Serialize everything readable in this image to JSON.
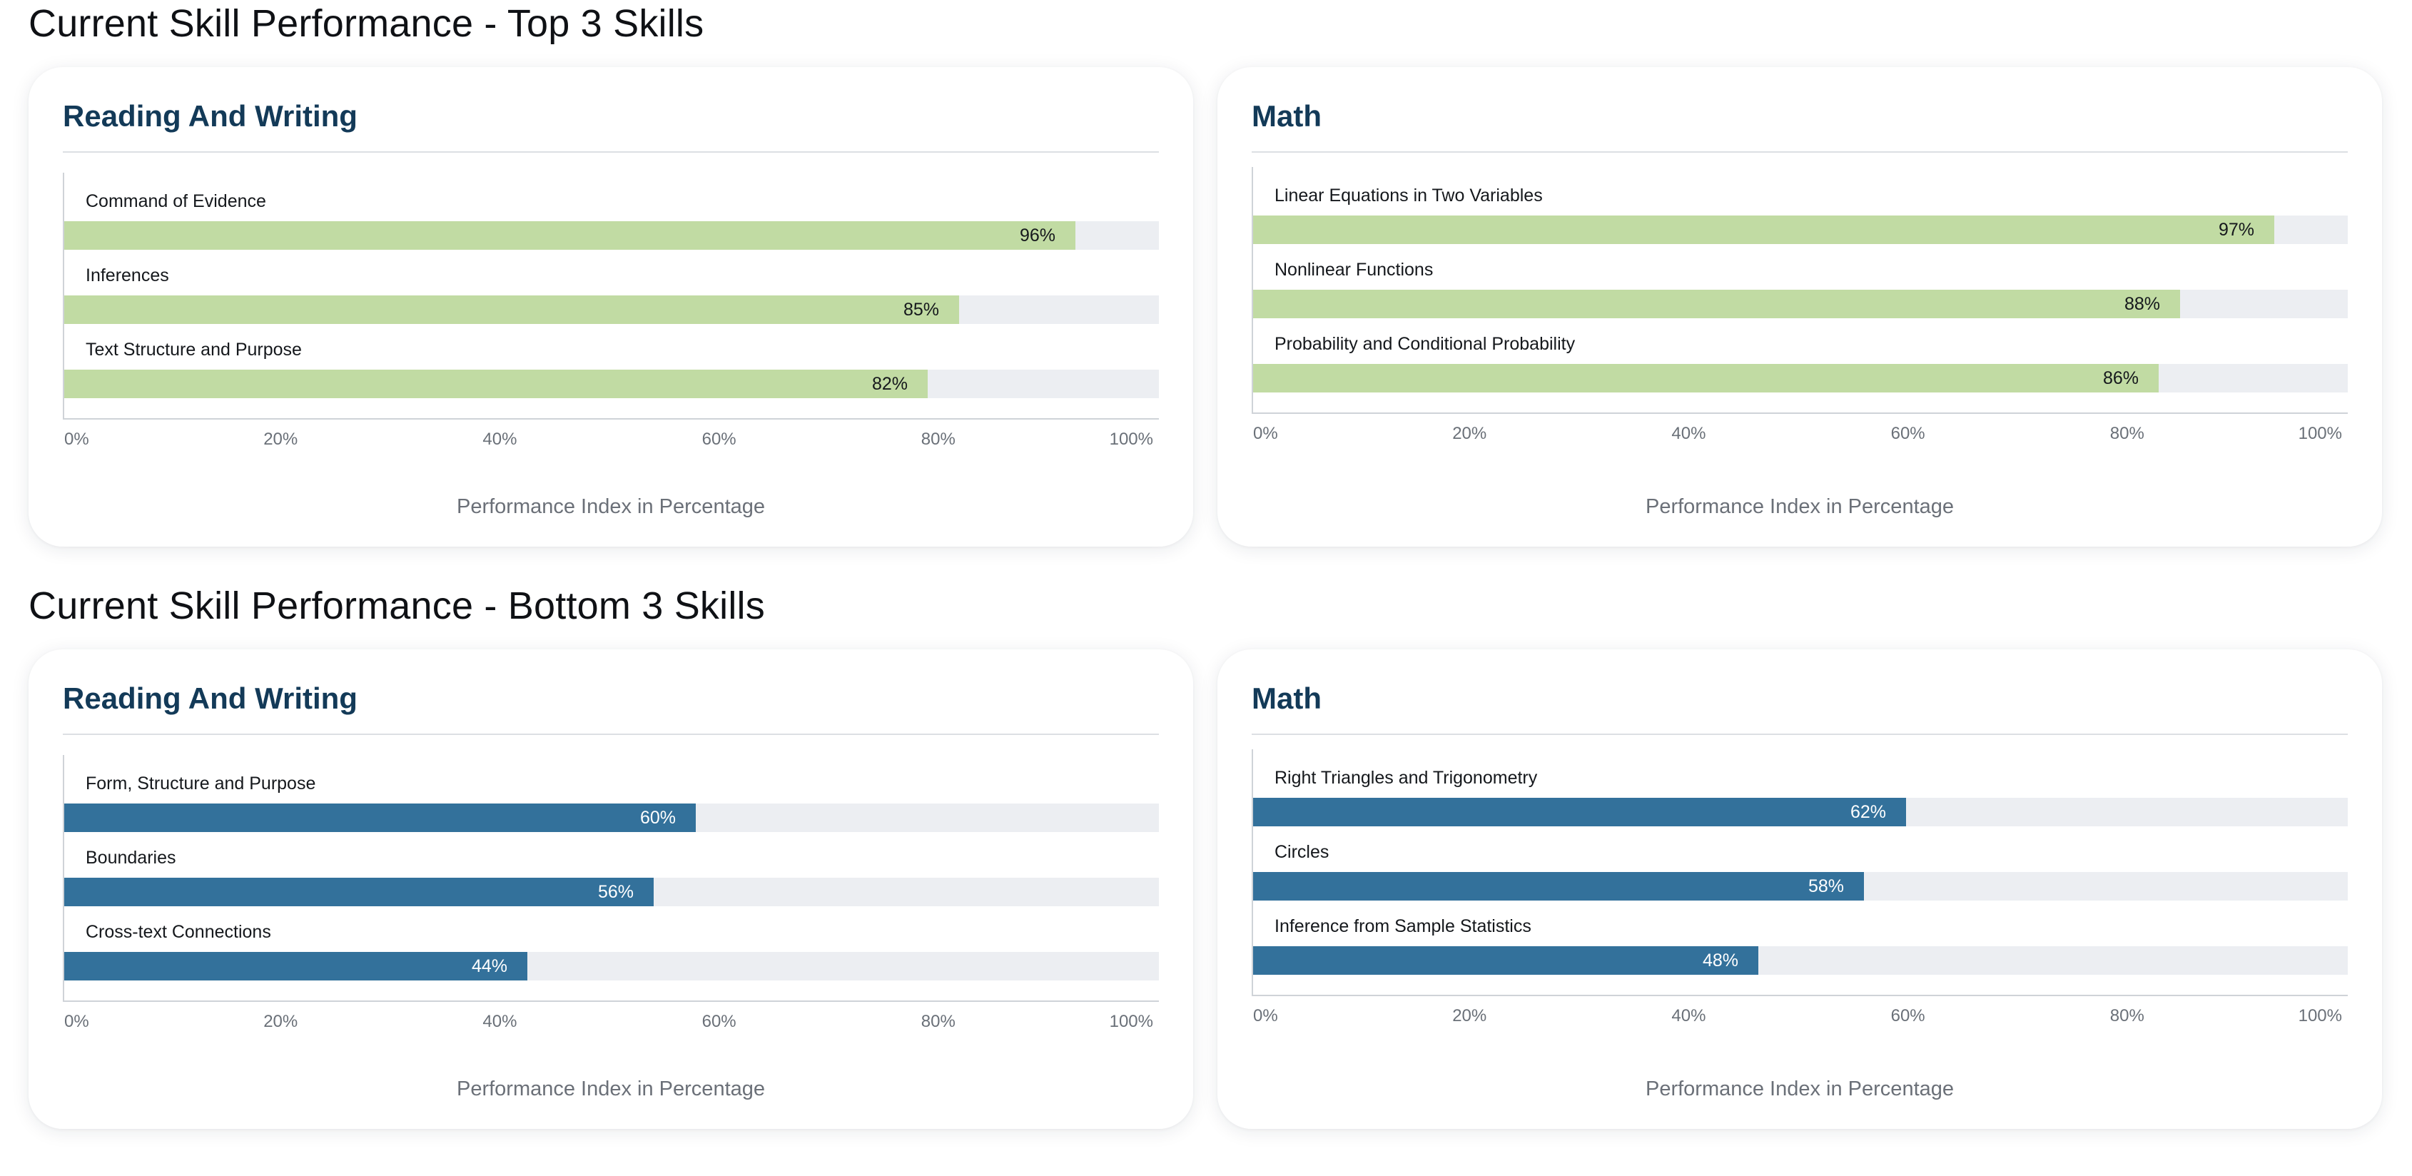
{
  "sections": {
    "top_title": "Current Skill Performance - Top 3 Skills",
    "bottom_title": "Current Skill Performance - Bottom 3 Skills"
  },
  "colors": {
    "top_bar": "#c1dba3",
    "bottom_bar": "#33719b",
    "track": "#eceef2",
    "card_title": "#133a58"
  },
  "chart_data": [
    {
      "type": "bar",
      "orientation": "horizontal",
      "group": "top",
      "title": "Reading And Writing",
      "categories": [
        "Command of Evidence",
        "Inferences",
        "Text Structure and Purpose"
      ],
      "values": [
        96,
        85,
        82
      ],
      "value_labels": [
        "96%",
        "85%",
        "82%"
      ],
      "xlabel": "Performance Index in Percentage",
      "xlim": [
        0,
        100
      ],
      "xticks": [
        "0%",
        "20%",
        "40%",
        "60%",
        "80%",
        "100%"
      ],
      "grid": false
    },
    {
      "type": "bar",
      "orientation": "horizontal",
      "group": "top",
      "title": "Math",
      "categories": [
        "Linear Equations in Two Variables",
        "Nonlinear Functions",
        "Probability and Conditional Probability"
      ],
      "values": [
        97,
        88,
        86
      ],
      "value_labels": [
        "97%",
        "88%",
        "86%"
      ],
      "xlabel": "Performance Index in Percentage",
      "xlim": [
        0,
        100
      ],
      "xticks": [
        "0%",
        "20%",
        "40%",
        "60%",
        "80%",
        "100%"
      ],
      "grid": false
    },
    {
      "type": "bar",
      "orientation": "horizontal",
      "group": "bottom",
      "title": "Reading And Writing",
      "categories": [
        "Form, Structure and Purpose",
        "Boundaries",
        "Cross-text Connections"
      ],
      "values": [
        60,
        56,
        44
      ],
      "value_labels": [
        "60%",
        "56%",
        "44%"
      ],
      "xlabel": "Performance Index in Percentage",
      "xlim": [
        0,
        100
      ],
      "xticks": [
        "0%",
        "20%",
        "40%",
        "60%",
        "80%",
        "100%"
      ],
      "grid": false
    },
    {
      "type": "bar",
      "orientation": "horizontal",
      "group": "bottom",
      "title": "Math",
      "categories": [
        "Right Triangles and Trigonometry",
        "Circles",
        "Inference from Sample Statistics"
      ],
      "values": [
        62,
        58,
        48
      ],
      "value_labels": [
        "62%",
        "58%",
        "48%"
      ],
      "xlabel": "Performance Index in Percentage",
      "xlim": [
        0,
        100
      ],
      "xticks": [
        "0%",
        "20%",
        "40%",
        "60%",
        "80%",
        "100%"
      ],
      "grid": false
    }
  ]
}
